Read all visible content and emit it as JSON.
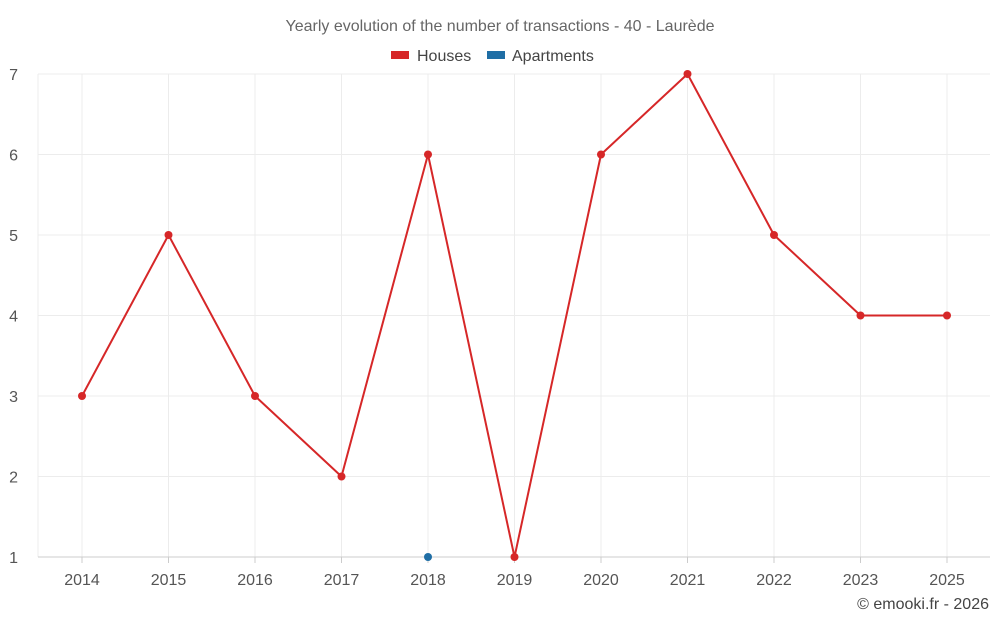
{
  "chart_data": {
    "type": "line",
    "title": "Yearly evolution of the number of transactions - 40 - Laurède",
    "categories": [
      "2014",
      "2015",
      "2016",
      "2017",
      "2018",
      "2019",
      "2020",
      "2021",
      "2022",
      "2023",
      "2025"
    ],
    "series": [
      {
        "name": "Houses",
        "color": "#d62728",
        "values": [
          3,
          5,
          3,
          2,
          6,
          1,
          6,
          7,
          5,
          4,
          4
        ]
      },
      {
        "name": "Apartments",
        "color": "#1f6ea5",
        "values": [
          null,
          null,
          null,
          null,
          1,
          null,
          null,
          null,
          null,
          null,
          null
        ]
      }
    ],
    "ylim": [
      1,
      7
    ],
    "yticks": [
      "1",
      "2",
      "3",
      "4",
      "5",
      "6",
      "7"
    ],
    "grid": true,
    "legend": "top-center"
  },
  "footer": "© emooki.fr - 2026"
}
